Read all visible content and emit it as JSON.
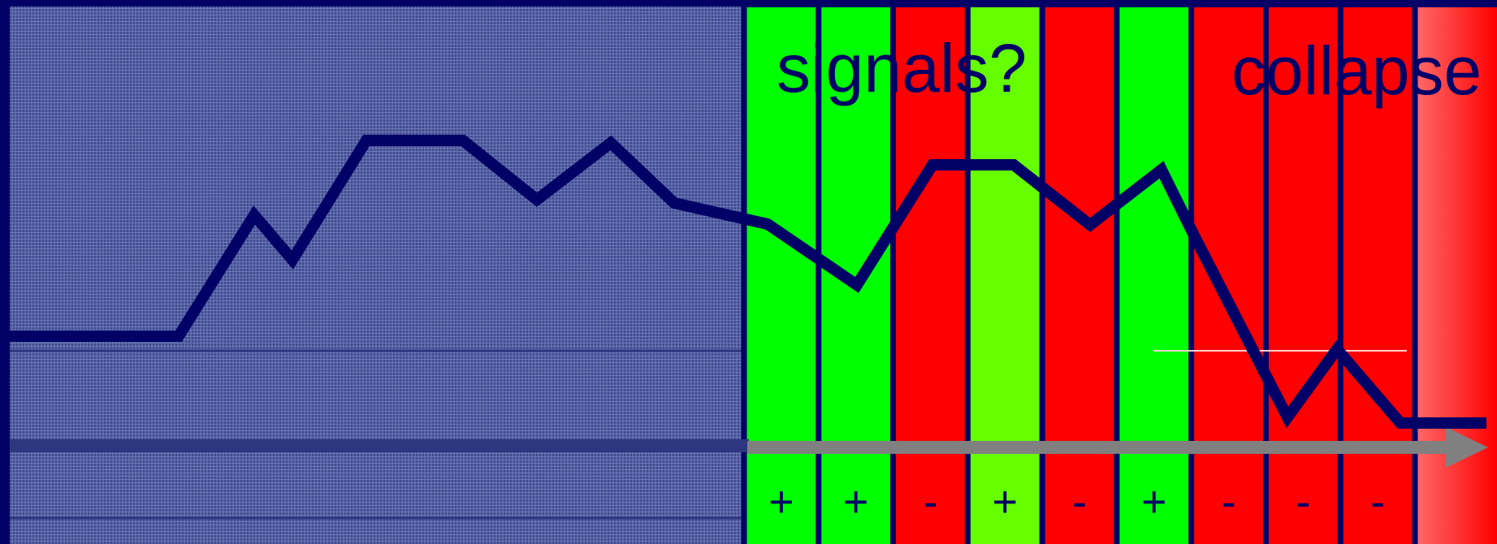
{
  "labels": {
    "signals": "signals?",
    "collapse": "collapse"
  },
  "colors": {
    "navy": "#000066",
    "hatch_bg": "#4d5a9c",
    "green": "#00ff00",
    "lime": "#66ff00",
    "red": "#ff0000",
    "arrow": "#808080"
  },
  "bands": [
    {
      "sign": "+",
      "color": "green"
    },
    {
      "sign": "+",
      "color": "green"
    },
    {
      "sign": "-",
      "color": "red"
    },
    {
      "sign": "+",
      "color": "lime"
    },
    {
      "sign": "-",
      "color": "red"
    },
    {
      "sign": "+",
      "color": "green"
    },
    {
      "sign": "-",
      "color": "red"
    },
    {
      "sign": "-",
      "color": "red"
    },
    {
      "sign": "-",
      "color": "red"
    }
  ]
}
